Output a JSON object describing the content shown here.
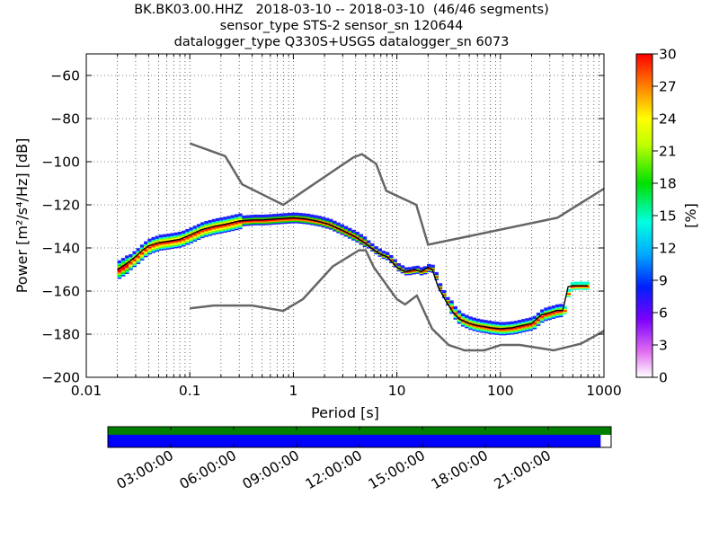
{
  "title": {
    "line1": "BK.BK03.00.HHZ   2018-03-10 -- 2018-03-10  (46/46 segments)",
    "line2": "sensor_type STS-2 sensor_sn 120644",
    "line3": "datalogger_type Q330S+USGS datalogger_sn 6073"
  },
  "colors": {
    "mean_curve": "#000000",
    "noise_model": "#666666",
    "timeline_green": "#008000",
    "timeline_blue": "#0000ff"
  },
  "chart_data": [
    {
      "type": "heatmap",
      "name": "ppsd",
      "xlabel": "Period [s]",
      "ylabel": "Power [m²/s⁴/Hz] [dB]",
      "xscale": "log",
      "xlim": [
        0.01,
        1000
      ],
      "ylim": [
        -200,
        -50
      ],
      "xticks": [
        0.01,
        0.1,
        1,
        10,
        100,
        1000
      ],
      "xtick_labels": [
        "0.01",
        "0.1",
        "1",
        "10",
        "100",
        "1000"
      ],
      "yticks": [
        -200,
        -180,
        -160,
        -140,
        -120,
        -100,
        -80,
        -60
      ],
      "ytick_labels": [
        "−200",
        "−180",
        "−160",
        "−140",
        "−120",
        "−100",
        "−80",
        "−60"
      ],
      "grid": true,
      "colorbar": {
        "label": "[%]",
        "range": [
          0,
          30
        ],
        "ticks": [
          0,
          3,
          6,
          9,
          12,
          15,
          18,
          21,
          24,
          27,
          30
        ],
        "tick_labels": [
          "0",
          "3",
          "6",
          "9",
          "12",
          "15",
          "18",
          "21",
          "24",
          "27",
          "30"
        ],
        "colormap": "pqlx"
      },
      "mean_curve": {
        "x": [
          0.02,
          0.025,
          0.03,
          0.035,
          0.04,
          0.05,
          0.06,
          0.08,
          0.1,
          0.13,
          0.17,
          0.22,
          0.3,
          0.4,
          0.5,
          0.7,
          1,
          1.3,
          1.7,
          2.2,
          3,
          4,
          5,
          6,
          7,
          8,
          10,
          12,
          15,
          17,
          20,
          22,
          25,
          30,
          35,
          40,
          50,
          60,
          70,
          80,
          100,
          130,
          160,
          200,
          250,
          300,
          350,
          400,
          450,
          500,
          600,
          700
        ],
        "y": [
          -150,
          -147,
          -144,
          -141,
          -139,
          -137.5,
          -137,
          -136,
          -134,
          -131.5,
          -130,
          -129,
          -127.5,
          -127,
          -127,
          -126.5,
          -126,
          -126.5,
          -127.5,
          -129,
          -132,
          -135,
          -138,
          -141,
          -143,
          -144,
          -149,
          -151,
          -150,
          -151,
          -149,
          -150,
          -158,
          -165,
          -170,
          -173,
          -175,
          -176,
          -176.5,
          -177,
          -177.5,
          -177,
          -176,
          -175,
          -171,
          -170,
          -169,
          -169,
          -158,
          -157.5,
          -157.5,
          -157.5
        ]
      },
      "noise_models": [
        {
          "x": [
            0.1,
            0.22,
            0.32,
            0.8,
            3.8,
            4.6,
            6.3,
            7.9,
            15.4,
            20,
            354.8,
            1000
          ],
          "y": [
            -91.5,
            -97.4,
            -110.5,
            -120,
            -98,
            -96.5,
            -101,
            -113.5,
            -120,
            -138.5,
            -126,
            -112.5
          ]
        },
        {
          "x": [
            0.1,
            0.17,
            0.4,
            0.8,
            1.24,
            2.4,
            4.3,
            5,
            6,
            10,
            12,
            15.6,
            21.9,
            31.6,
            45,
            70,
            101,
            154,
            328,
            600,
            1000
          ],
          "y": [
            -168,
            -166.7,
            -166.7,
            -169.2,
            -163.7,
            -148.6,
            -141.1,
            -141.1,
            -149,
            -163.8,
            -166.2,
            -162.1,
            -177.5,
            -185,
            -187.5,
            -187.5,
            -185,
            -185,
            -187.5,
            -184.4,
            -178.5
          ]
        }
      ]
    },
    {
      "type": "timeline",
      "name": "data-coverage",
      "xlim_hours": [
        0,
        24
      ],
      "tick_hours": [
        3,
        6,
        9,
        12,
        15,
        18,
        21
      ],
      "tick_labels": [
        "03:00:00",
        "06:00:00",
        "09:00:00",
        "12:00:00",
        "15:00:00",
        "18:00:00",
        "21:00:00"
      ],
      "green_coverage_hours": [
        0,
        24
      ],
      "blue_coverage_hours": [
        0,
        23.5
      ]
    }
  ]
}
